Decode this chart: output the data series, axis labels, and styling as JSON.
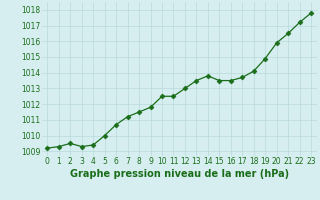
{
  "x": [
    0,
    1,
    2,
    3,
    4,
    5,
    6,
    7,
    8,
    9,
    10,
    11,
    12,
    13,
    14,
    15,
    16,
    17,
    18,
    19,
    20,
    21,
    22,
    23
  ],
  "y": [
    1009.2,
    1009.3,
    1009.5,
    1009.3,
    1009.4,
    1010.0,
    1010.7,
    1011.2,
    1011.5,
    1011.8,
    1012.5,
    1012.5,
    1013.0,
    1013.5,
    1013.8,
    1013.5,
    1013.5,
    1013.7,
    1014.1,
    1014.9,
    1015.9,
    1016.5,
    1017.2,
    1017.8
  ],
  "line_color": "#1a6e1a",
  "marker": "D",
  "marker_size": 2.5,
  "bg_color": "#d6eef0",
  "grid_color": "#b8d8db",
  "xlabel": "Graphe pression niveau de la mer (hPa)",
  "xlabel_fontsize": 7,
  "ylabel_ticks": [
    1009,
    1010,
    1011,
    1012,
    1013,
    1014,
    1015,
    1016,
    1017,
    1018
  ],
  "ylim": [
    1008.7,
    1018.5
  ],
  "xlim": [
    -0.5,
    23.5
  ],
  "xtick_fontsize": 5.5,
  "ytick_fontsize": 5.5,
  "linewidth": 0.9
}
